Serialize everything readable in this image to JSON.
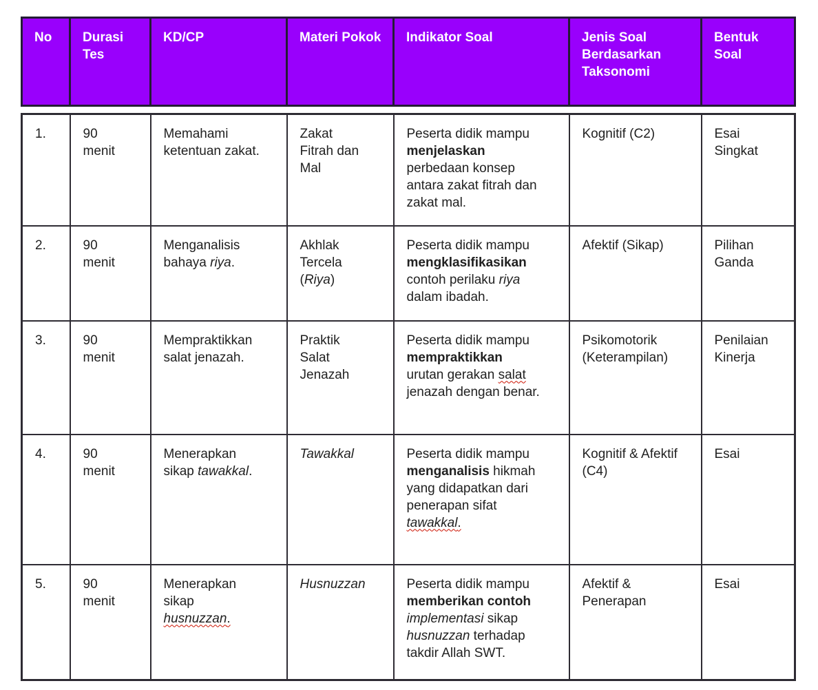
{
  "table": {
    "colors": {
      "header_bg": "#9900FC",
      "header_text": "#ffffff",
      "header_border": "#241b35",
      "body_border": "#2e2b33",
      "body_text": "#212121",
      "squiggle": "#cc1100"
    },
    "columns": [
      {
        "key": "no",
        "label": "No"
      },
      {
        "key": "durasi",
        "label": "Durasi Tes"
      },
      {
        "key": "kd",
        "label": "KD/CP"
      },
      {
        "key": "materi",
        "label": "Materi Pokok"
      },
      {
        "key": "indikator",
        "label": "Indikator Soal"
      },
      {
        "key": "jenis",
        "label": "Jenis Soal Berdasarkan Taksonomi"
      },
      {
        "key": "bentuk",
        "label": "Bentuk Soal"
      }
    ],
    "rows": [
      {
        "no": "1.",
        "durasi": "90 menit",
        "kd": [
          {
            "t": "Memahami ketentuan zakat."
          }
        ],
        "materi": [
          {
            "t": "Zakat Fitrah dan Mal"
          }
        ],
        "indikator": [
          {
            "t": "Peserta didik mampu "
          },
          {
            "t": "menjelaskan",
            "b": true
          },
          {
            "t": " perbedaan konsep antara zakat fitrah dan zakat mal."
          }
        ],
        "jenis": "Kognitif (C2)",
        "bentuk": "Esai Singkat"
      },
      {
        "no": "2.",
        "durasi": "90 menit",
        "kd": [
          {
            "t": "Menganalisis bahaya "
          },
          {
            "t": "riya",
            "i": true
          },
          {
            "t": "."
          }
        ],
        "materi": [
          {
            "t": "Akhlak Tercela ("
          },
          {
            "t": "Riya",
            "i": true
          },
          {
            "t": ")"
          }
        ],
        "indikator": [
          {
            "t": "Peserta didik mampu "
          },
          {
            "t": "mengklasifikasikan",
            "b": true
          },
          {
            "t": " contoh perilaku "
          },
          {
            "t": "riya",
            "i": true
          },
          {
            "t": " dalam ibadah."
          }
        ],
        "jenis": "Afektif (Sikap)",
        "bentuk": "Pilihan Ganda"
      },
      {
        "no": "3.",
        "durasi": "90 menit",
        "kd": [
          {
            "t": "Mempraktikkan salat jenazah."
          }
        ],
        "materi": [
          {
            "t": "Praktik Salat Jenazah"
          }
        ],
        "indikator": [
          {
            "t": "Peserta didik mampu "
          },
          {
            "t": "mempraktikkan",
            "b": true
          },
          {
            "t": " urutan gerakan "
          },
          {
            "t": "salat",
            "sq": true
          },
          {
            "t": " jenazah dengan benar."
          }
        ],
        "jenis": "Psikomotorik (Keterampilan)",
        "bentuk": "Penilaian Kinerja"
      },
      {
        "no": "4.",
        "durasi": "90 menit",
        "kd": [
          {
            "t": "Menerapkan sikap "
          },
          {
            "t": "tawakkal",
            "i": true
          },
          {
            "t": "."
          }
        ],
        "materi": [
          {
            "t": "Tawakkal",
            "i": true
          }
        ],
        "indikator": [
          {
            "t": "Peserta didik mampu "
          },
          {
            "t": "menganalisis",
            "b": true
          },
          {
            "t": " hikmah yang didapatkan dari penerapan sifat "
          },
          {
            "t": "tawakkal",
            "i": true,
            "sq": true
          },
          {
            "t": ".",
            "sq": true
          }
        ],
        "jenis": "Kognitif & Afektif (C4)",
        "bentuk": "Esai"
      },
      {
        "no": "5.",
        "durasi": "90 menit",
        "kd": [
          {
            "t": "Menerapkan sikap "
          },
          {
            "t": "husnuzzan",
            "i": true,
            "sq": true
          },
          {
            "t": ".",
            "sq": true
          }
        ],
        "materi": [
          {
            "t": "Husnuzzan",
            "i": true
          }
        ],
        "indikator": [
          {
            "t": "Peserta didik mampu "
          },
          {
            "t": "memberikan contoh",
            "b": true
          },
          {
            "t": " "
          },
          {
            "t": "implementasi",
            "i": true
          },
          {
            "t": " sikap "
          },
          {
            "t": "husnuzzan",
            "i": true
          },
          {
            "t": " terhadap takdir Allah SWT."
          }
        ],
        "jenis": "Afektif & Penerapan",
        "bentuk": "Esai"
      }
    ]
  }
}
